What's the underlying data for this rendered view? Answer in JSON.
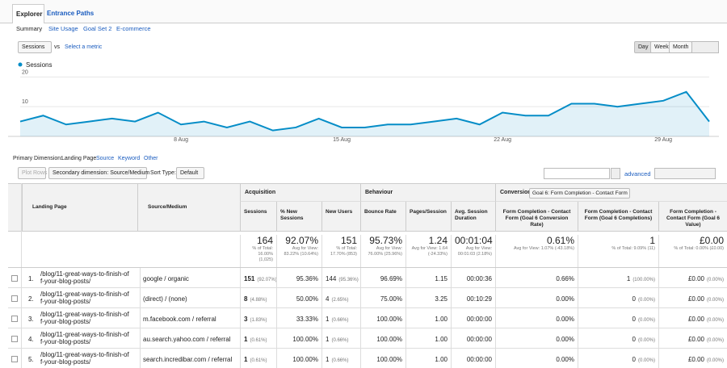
{
  "tabs": [
    "Explorer",
    "Entrance Paths"
  ],
  "subtabs": [
    "Summary",
    "Site Usage",
    "Goal Set 2",
    "E-commerce"
  ],
  "metric": "Sessions",
  "vs": "vs",
  "select_metric": "Select a metric",
  "periods": [
    "Day",
    "Week",
    "Month"
  ],
  "chart_data": {
    "type": "line",
    "categories": [
      null,
      null,
      null,
      null,
      null,
      null,
      null,
      "8 Aug",
      null,
      null,
      null,
      null,
      null,
      null,
      "15 Aug",
      null,
      null,
      null,
      null,
      null,
      null,
      "22 Aug",
      null,
      null,
      null,
      null,
      null,
      null,
      "29 Aug",
      null,
      null
    ],
    "series": [
      {
        "name": "Sessions",
        "color": "#058dc7",
        "values": [
          5,
          7,
          4,
          5,
          6,
          5,
          8,
          4,
          5,
          3,
          5,
          2,
          3,
          6,
          3,
          3,
          4,
          4,
          5,
          6,
          4,
          8,
          7,
          7,
          11,
          11,
          10,
          11,
          12,
          15,
          5
        ]
      }
    ],
    "ylim": [
      0,
      22
    ],
    "yticks": [
      10,
      20
    ],
    "grid": true
  },
  "primary_dimension": {
    "label": "Primary Dimension:",
    "options": [
      "Landing Page",
      "Source",
      "Keyword",
      "Other"
    ]
  },
  "toolbar": {
    "plot_rows": "Plot Rows",
    "secondary": "Secondary dimension: Source/Medium",
    "sort_label": "Sort Type:",
    "sort_value": "Default",
    "advanced": "advanced"
  },
  "table": {
    "groups": [
      "Acquisition",
      "Behaviour",
      "Conversions"
    ],
    "goal": "Goal 6: Form Completion - Contact Form",
    "columns": [
      "Landing Page",
      "Source/Medium",
      "Sessions",
      "% New Sessions",
      "New Users",
      "Bounce Rate",
      "Pages/Session",
      "Avg. Session Duration",
      "Form Completion - Contact Form (Goal 6 Conversion Rate)",
      "Form Completion - Contact Form (Goal 6 Completions)",
      "Form Completion - Contact Form (Goal 6 Value)"
    ],
    "totals": [
      [
        "164",
        "% of Total: 16.00% (1,025)"
      ],
      [
        "92.07%",
        "Avg for View: 83.22% (10.64%)"
      ],
      [
        "151",
        "% of Total: 17.70% (853)"
      ],
      [
        "95.73%",
        "Avg for View: 76.00% (25.96%)"
      ],
      [
        "1.24",
        "Avg for View: 1.64 (-24.33%)"
      ],
      [
        "00:01:04",
        "Avg for View: 00:01:03 (2.18%)"
      ],
      [
        "0.61%",
        "Avg for View: 1.07% (-43.18%)"
      ],
      [
        "1",
        "% of Total: 9.09% (11)"
      ],
      [
        "£0.00",
        "% of Total: 0.00% (£0.00)"
      ]
    ],
    "rows": [
      [
        "1.",
        "/blog/11-great-ways-to-finish-off-your-blog-posts/",
        "google / organic",
        [
          "151",
          "(92.07%)"
        ],
        "95.36%",
        [
          "144",
          "(95.36%)"
        ],
        "96.69%",
        "1.15",
        "00:00:36",
        "0.66%",
        [
          "1",
          "(100.00%)"
        ],
        [
          "£0.00",
          "(0.00%)"
        ]
      ],
      [
        "2.",
        "/blog/11-great-ways-to-finish-off-your-blog-posts/",
        "(direct) / (none)",
        [
          "8",
          "(4.88%)"
        ],
        "50.00%",
        [
          "4",
          "(2.65%)"
        ],
        "75.00%",
        "3.25",
        "00:10:29",
        "0.00%",
        [
          "0",
          "(0.00%)"
        ],
        [
          "£0.00",
          "(0.00%)"
        ]
      ],
      [
        "3.",
        "/blog/11-great-ways-to-finish-off-your-blog-posts/",
        "m.facebook.com / referral",
        [
          "3",
          "(1.83%)"
        ],
        "33.33%",
        [
          "1",
          "(0.66%)"
        ],
        "100.00%",
        "1.00",
        "00:00:00",
        "0.00%",
        [
          "0",
          "(0.00%)"
        ],
        [
          "£0.00",
          "(0.00%)"
        ]
      ],
      [
        "4.",
        "/blog/11-great-ways-to-finish-off-your-blog-posts/",
        "au.search.yahoo.com / referral",
        [
          "1",
          "(0.61%)"
        ],
        "100.00%",
        [
          "1",
          "(0.66%)"
        ],
        "100.00%",
        "1.00",
        "00:00:00",
        "0.00%",
        [
          "0",
          "(0.00%)"
        ],
        [
          "£0.00",
          "(0.00%)"
        ]
      ],
      [
        "5.",
        "/blog/11-great-ways-to-finish-off-your-blog-posts/",
        "search.incredibar.com / referral",
        [
          "1",
          "(0.61%)"
        ],
        "100.00%",
        [
          "1",
          "(0.66%)"
        ],
        "100.00%",
        "1.00",
        "00:00:00",
        "0.00%",
        [
          "0",
          "(0.00%)"
        ],
        [
          "£0.00",
          "(0.00%)"
        ]
      ]
    ]
  }
}
